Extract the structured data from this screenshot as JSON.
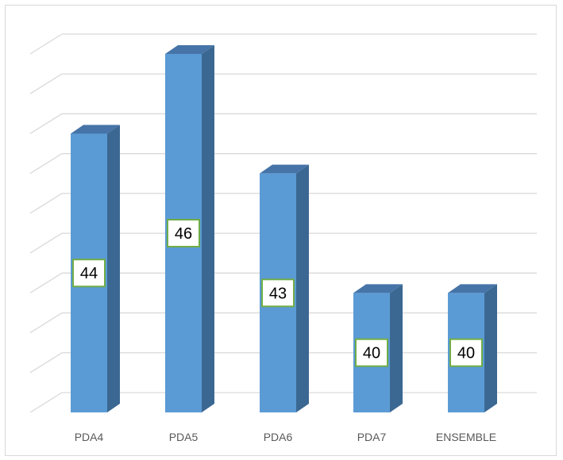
{
  "chart_data": {
    "type": "bar",
    "style": "3d-column",
    "categories": [
      "PDA4",
      "PDA5",
      "PDA6",
      "PDA7",
      "ENSEMBLE"
    ],
    "values": [
      44,
      46,
      43,
      40,
      40
    ],
    "ylim": [
      37,
      46
    ],
    "grid": true,
    "legend": "none",
    "colors": {
      "bar_front": "#5b9bd5",
      "bar_side": "#3b6892",
      "bar_top": "#4674a8",
      "label_border": "#70ad47",
      "gridline": "#d9d9d9"
    }
  }
}
